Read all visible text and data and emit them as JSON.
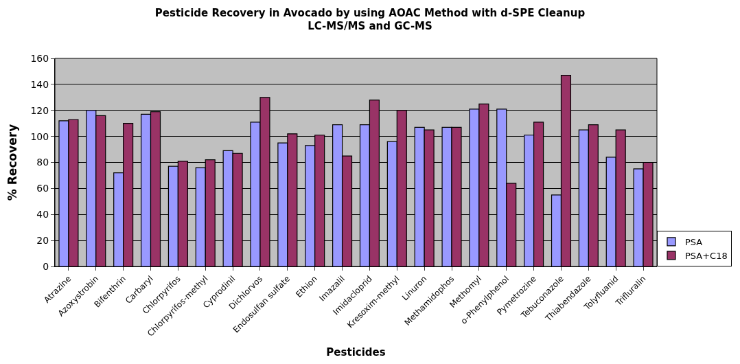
{
  "chart_data": {
    "type": "bar",
    "title": "Pesticide Recovery in Avocado by using AOAC Method with d-SPE Cleanup\nLC-MS/MS and GC-MS",
    "xlabel": "Pesticides",
    "ylabel": "% Recovery",
    "categories": [
      "Atrazine",
      "Azoxystrobin",
      "Bifenthrin",
      "Carbaryl",
      "Chlorpyrifos",
      "Chlorpyrifos-methyl",
      "Cyprodinil",
      "Dichlorvos",
      "Endosulfan sulfate",
      "Ethion",
      "Imazalil",
      "Imidacloprid",
      "Kresoxim-methyl",
      "Linuron",
      "Methamidophos",
      "Methomyl",
      "o-Phenylphenol",
      "Pymetrozine",
      "Tebuconazole",
      "Thiabendazole",
      "Tolyfluanid",
      "Trifluralin"
    ],
    "series": [
      {
        "name": "PSA",
        "color": "#9999ff",
        "values": [
          112,
          120,
          72,
          117,
          77,
          76,
          89,
          111,
          95,
          93,
          109,
          109,
          96,
          107,
          107,
          121,
          121,
          101,
          55,
          105,
          84,
          75
        ]
      },
      {
        "name": "PSA+C18",
        "color": "#993366",
        "values": [
          113,
          116,
          110,
          119,
          81,
          82,
          87,
          130,
          102,
          101,
          85,
          128,
          120,
          105,
          107,
          125,
          64,
          111,
          147,
          109,
          105,
          80
        ]
      }
    ],
    "ylim": [
      0,
      160
    ],
    "yticks": [
      0,
      20,
      40,
      60,
      80,
      100,
      120,
      140,
      160
    ],
    "grid": "y",
    "legend": "bottom right"
  }
}
